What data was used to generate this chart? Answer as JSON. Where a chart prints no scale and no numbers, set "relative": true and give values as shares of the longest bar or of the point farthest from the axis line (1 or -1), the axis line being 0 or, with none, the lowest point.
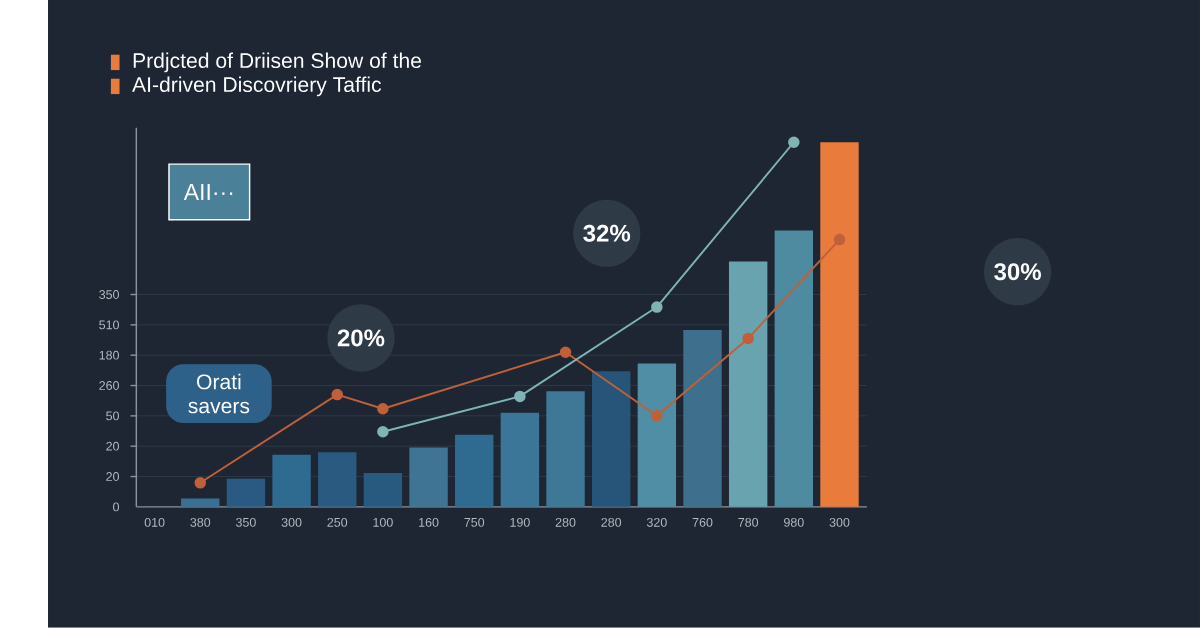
{
  "chart_data": {
    "type": "bar",
    "title": "Prdjcted of Driisen Show of the",
    "subtitle": "AI-driven Discovriery Taffic",
    "relative": true,
    "categories": [
      "010",
      "380",
      "350",
      "300",
      "250",
      "100",
      "160",
      "750",
      "190",
      "280",
      "280",
      "320",
      "760",
      "780",
      "980",
      "300"
    ],
    "values": [
      null,
      0.023,
      0.077,
      0.143,
      0.15,
      0.093,
      0.163,
      0.198,
      0.258,
      0.317,
      0.372,
      0.393,
      0.485,
      0.673,
      0.758,
      1.0
    ],
    "colors": [
      "#3a6f93",
      "#3a6f93",
      "#2a5a82",
      "#2f6a90",
      "#2a5a80",
      "#285a80",
      "#3f7494",
      "#2f6a90",
      "#3b7698",
      "#3e7896",
      "#275479",
      "#4f8ea5",
      "#3e6f8c",
      "#6aa3b0",
      "#4f8ba0",
      "#e97b3c"
    ],
    "series": [
      {
        "type": "line",
        "color": "#c0603a",
        "values": [
          null,
          0.066,
          null,
          null,
          0.308,
          0.269,
          null,
          null,
          null,
          0.424,
          null,
          0.25,
          null,
          0.462,
          null,
          0.733
        ]
      },
      {
        "type": "line",
        "color": "#7fb3b5",
        "values": [
          null,
          null,
          null,
          null,
          null,
          0.206,
          null,
          null,
          0.303,
          null,
          null,
          0.548,
          null,
          null,
          1.0,
          null
        ]
      }
    ],
    "grid": "y",
    "marker": "circle",
    "line_style": "solid",
    "annotations": [
      "0",
      "20",
      "20",
      "50",
      "260",
      "180",
      "510",
      "350",
      "AII···",
      "Orati savers",
      "20%",
      "32%",
      "30%"
    ]
  }
}
